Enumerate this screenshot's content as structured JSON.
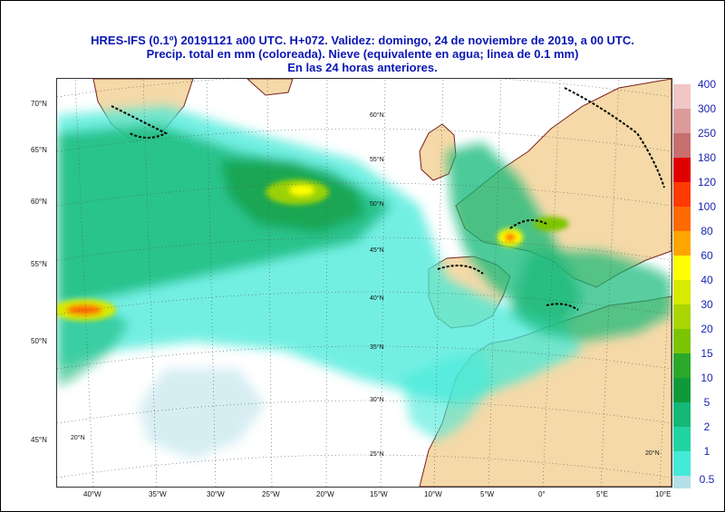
{
  "title": {
    "line1": "HRES-IFS (0.1º) 20191121 a00 UTC.  H+072. Validez: domingo, 24 de noviembre de 2019,  a 00 UTC.",
    "line2": "Precip. total en mm (coloreada). Nieve (equivalente en agua; linea de 0.1 mm)",
    "line3": "En las 24 horas anteriores."
  },
  "map": {
    "outer_lat_labels": [
      "70°N",
      "65°N",
      "60°N",
      "55°N",
      "50°N",
      "45°N"
    ],
    "lon_labels": [
      "40°W",
      "35°W",
      "30°W",
      "25°W",
      "20°W",
      "15°W",
      "10°W",
      "5°W",
      "0°",
      "5°E",
      "10°E"
    ],
    "inner_lat_labels": [
      "60°N",
      "55°N",
      "50°N",
      "45°N",
      "40°N",
      "35°N",
      "30°N",
      "25°N"
    ],
    "inner_corner_labels": [
      "20°N",
      "20°N"
    ],
    "colors": {
      "ocean": "#ffffff",
      "land": "#f5d9a8",
      "coast": "#7a1f1f",
      "snow_line": "#000000",
      "grid": "#555555"
    }
  },
  "legend": {
    "items": [
      {
        "label": "400",
        "color": "#f0c6c6"
      },
      {
        "label": "300",
        "color": "#dd9a9a"
      },
      {
        "label": "250",
        "color": "#c86f6f"
      },
      {
        "label": "180",
        "color": "#e00000"
      },
      {
        "label": "120",
        "color": "#ff3a00"
      },
      {
        "label": "100",
        "color": "#ff6a00"
      },
      {
        "label": "80",
        "color": "#ffa500"
      },
      {
        "label": "60",
        "color": "#ffff00"
      },
      {
        "label": "40",
        "color": "#d8ea00"
      },
      {
        "label": "30",
        "color": "#a9d600"
      },
      {
        "label": "20",
        "color": "#7cc400"
      },
      {
        "label": "15",
        "color": "#2aa82a"
      },
      {
        "label": "10",
        "color": "#0f9a3a"
      },
      {
        "label": "5",
        "color": "#14b877"
      },
      {
        "label": "2",
        "color": "#22d3a4"
      },
      {
        "label": "1",
        "color": "#44ead8"
      },
      {
        "label": "0.5",
        "color": "#b5e0e8"
      }
    ]
  }
}
